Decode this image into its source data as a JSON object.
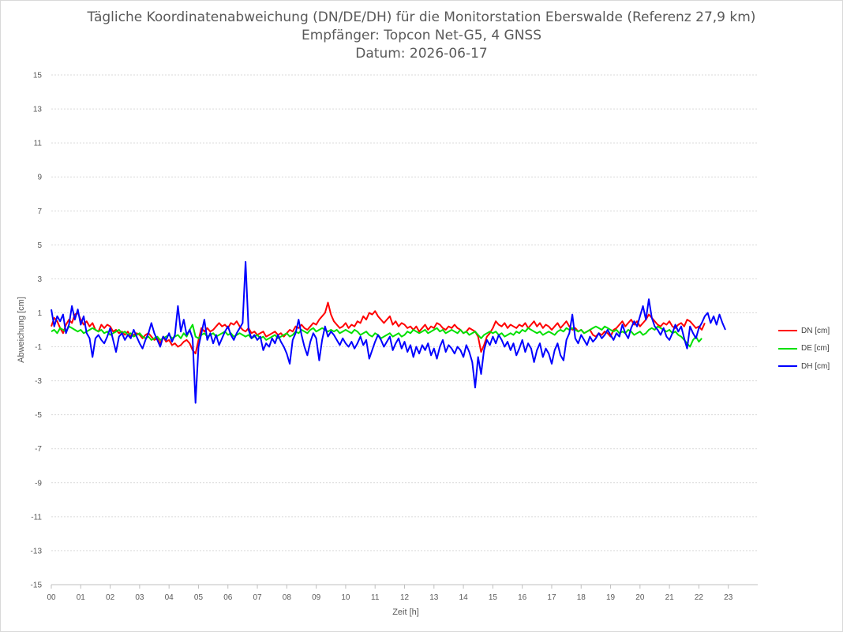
{
  "chart_data": {
    "type": "line",
    "title": "Tägliche Koordinatenabweichung (DN/DE/DH) für die Monitorstation Eberswalde (Referenz 27,9 km)",
    "subtitle": "Empfänger: Topcon Net-G5, 4 GNSS",
    "date_line": "Datum: 2026-06-17",
    "xlabel": "Zeit [h]",
    "ylabel": "Abweichung [cm]",
    "xlim": [
      0,
      24
    ],
    "ylim": [
      -15,
      15
    ],
    "x_ticks": [
      "00",
      "01",
      "02",
      "03",
      "04",
      "05",
      "06",
      "07",
      "08",
      "09",
      "10",
      "11",
      "12",
      "13",
      "14",
      "15",
      "16",
      "17",
      "18",
      "19",
      "20",
      "21",
      "22",
      "23"
    ],
    "y_ticks": [
      15,
      13,
      11,
      9,
      7,
      5,
      3,
      1,
      -1,
      -3,
      -5,
      -7,
      -9,
      -11,
      -13,
      -15
    ],
    "grid": true,
    "legend_position": "right",
    "x_step_hours": 0.1,
    "series": [
      {
        "name": "DN [cm]",
        "color": "#ff0000",
        "values": [
          0.2,
          0.7,
          0.5,
          0.1,
          -0.2,
          0.3,
          0.6,
          0.4,
          0.9,
          1.0,
          0.6,
          0.3,
          0.5,
          0.2,
          0.4,
          0.0,
          -0.1,
          0.3,
          0.1,
          0.3,
          0.2,
          -0.1,
          0.0,
          -0.2,
          -0.1,
          -0.3,
          -0.1,
          -0.4,
          -0.3,
          -0.2,
          -0.3,
          -0.5,
          -0.3,
          -0.2,
          -0.4,
          -0.6,
          -0.5,
          -0.8,
          -0.4,
          -0.7,
          -0.6,
          -0.9,
          -0.8,
          -1.0,
          -0.9,
          -0.7,
          -0.6,
          -0.8,
          -1.2,
          -1.4,
          -0.6,
          0.1,
          -0.1,
          0.1,
          -0.1,
          0.0,
          0.2,
          0.4,
          0.2,
          0.3,
          0.1,
          0.4,
          0.3,
          0.5,
          0.2,
          0.0,
          -0.1,
          0.1,
          -0.2,
          -0.1,
          -0.3,
          -0.2,
          -0.1,
          -0.4,
          -0.3,
          -0.2,
          -0.1,
          -0.3,
          -0.2,
          -0.4,
          -0.2,
          0.0,
          -0.1,
          0.2,
          0.1,
          0.3,
          0.1,
          0.0,
          0.2,
          0.4,
          0.3,
          0.6,
          0.8,
          1.0,
          1.6,
          0.9,
          0.5,
          0.3,
          0.1,
          0.2,
          0.4,
          0.1,
          0.3,
          0.2,
          0.5,
          0.4,
          0.8,
          0.6,
          1.0,
          0.9,
          1.1,
          0.8,
          0.6,
          0.4,
          0.6,
          0.8,
          0.3,
          0.5,
          0.2,
          0.4,
          0.3,
          0.1,
          0.2,
          0.0,
          0.2,
          -0.1,
          0.1,
          0.3,
          0.0,
          0.2,
          0.1,
          0.4,
          0.3,
          0.1,
          0.0,
          0.2,
          0.1,
          0.3,
          0.1,
          0.0,
          -0.2,
          -0.1,
          0.1,
          0.0,
          -0.1,
          -0.4,
          -1.3,
          -0.9,
          -0.4,
          -0.2,
          0.1,
          0.5,
          0.3,
          0.2,
          0.4,
          0.1,
          0.3,
          0.2,
          0.1,
          0.3,
          0.2,
          0.4,
          0.1,
          0.3,
          0.5,
          0.2,
          0.4,
          0.1,
          0.3,
          0.2,
          0.0,
          0.2,
          0.4,
          0.1,
          0.3,
          0.5,
          0.2,
          0.0,
          0.1,
          -0.1,
          0.0,
          -0.2,
          -0.1,
          0.0,
          -0.3,
          -0.4,
          -0.2,
          -0.3,
          -0.1,
          -0.2,
          -0.4,
          0.0,
          0.1,
          0.3,
          0.5,
          0.2,
          0.4,
          0.6,
          0.3,
          0.5,
          0.2,
          0.4,
          0.6,
          0.9,
          0.7,
          0.5,
          0.3,
          0.2,
          0.4,
          0.3,
          0.5,
          0.2,
          0.1,
          0.3,
          0.4,
          0.2,
          0.6,
          0.5,
          0.3,
          0.1,
          0.2,
          0.0,
          0.4
        ]
      },
      {
        "name": "DE [cm]",
        "color": "#00e000",
        "values": [
          -0.1,
          0.0,
          -0.2,
          0.1,
          0.0,
          -0.1,
          0.2,
          0.1,
          0.0,
          -0.1,
          0.0,
          -0.2,
          -0.1,
          0.0,
          0.1,
          0.0,
          -0.1,
          0.0,
          -0.2,
          -0.1,
          -0.3,
          -0.2,
          -0.1,
          0.0,
          -0.2,
          -0.1,
          -0.3,
          -0.2,
          -0.4,
          -0.3,
          -0.2,
          -0.4,
          -0.5,
          -0.4,
          -0.6,
          -0.5,
          -0.4,
          -0.6,
          -0.5,
          -0.4,
          -0.3,
          -0.5,
          -0.4,
          -0.3,
          -0.5,
          -0.2,
          -0.4,
          0.0,
          0.3,
          -0.4,
          -0.5,
          -0.3,
          -0.2,
          -0.4,
          -0.3,
          -0.2,
          -0.4,
          -0.3,
          -0.2,
          -0.1,
          -0.3,
          -0.2,
          -0.4,
          -0.3,
          -0.2,
          -0.3,
          -0.4,
          -0.3,
          -0.5,
          -0.4,
          -0.3,
          -0.5,
          -0.4,
          -0.6,
          -0.5,
          -0.4,
          -0.3,
          -0.5,
          -0.4,
          -0.3,
          -0.2,
          -0.4,
          -0.3,
          -0.1,
          -0.2,
          0.0,
          -0.1,
          -0.2,
          0.0,
          0.1,
          -0.1,
          0.0,
          0.1,
          0.0,
          -0.1,
          0.0,
          -0.1,
          0.0,
          -0.2,
          -0.1,
          0.0,
          -0.1,
          -0.2,
          0.0,
          -0.1,
          -0.3,
          -0.2,
          -0.1,
          -0.3,
          -0.4,
          -0.2,
          -0.3,
          -0.5,
          -0.4,
          -0.3,
          -0.2,
          -0.4,
          -0.3,
          -0.2,
          -0.4,
          -0.3,
          -0.1,
          -0.2,
          0.0,
          -0.1,
          -0.2,
          -0.1,
          0.0,
          -0.2,
          -0.1,
          0.0,
          0.1,
          -0.1,
          0.0,
          -0.2,
          -0.1,
          0.0,
          -0.1,
          -0.2,
          0.0,
          -0.2,
          -0.1,
          -0.3,
          -0.2,
          -0.1,
          -0.3,
          -0.5,
          -0.3,
          -0.2,
          -0.1,
          -0.2,
          -0.1,
          -0.3,
          -0.2,
          -0.4,
          -0.3,
          -0.2,
          -0.3,
          -0.1,
          -0.2,
          0.0,
          -0.1,
          0.1,
          0.0,
          -0.1,
          -0.2,
          -0.1,
          -0.3,
          -0.2,
          -0.1,
          -0.2,
          -0.3,
          -0.1,
          0.0,
          -0.1,
          0.1,
          0.0,
          0.1,
          0.0,
          -0.1,
          0.0,
          -0.2,
          -0.1,
          0.0,
          0.1,
          0.2,
          0.1,
          0.0,
          0.2,
          0.1,
          0.0,
          -0.1,
          0.0,
          -0.2,
          -0.1,
          -0.2,
          0.0,
          -0.1,
          -0.3,
          -0.2,
          -0.1,
          -0.3,
          -0.2,
          0.0,
          0.1,
          0.0,
          0.2,
          0.1,
          0.0,
          -0.1,
          0.0,
          -0.2,
          -0.1,
          -0.3,
          -0.4,
          -0.6,
          -0.8,
          -1.0,
          -0.6,
          -0.4,
          -0.7,
          -0.5
        ]
      },
      {
        "name": "DH [cm]",
        "color": "#0000ff",
        "values": [
          1.2,
          0.2,
          0.8,
          0.5,
          0.9,
          -0.2,
          0.3,
          1.4,
          0.6,
          1.2,
          0.3,
          0.8,
          -0.2,
          -0.5,
          -1.6,
          -0.5,
          -0.3,
          -0.6,
          -0.8,
          -0.4,
          0.1,
          -0.6,
          -1.3,
          -0.4,
          -0.2,
          -0.6,
          -0.3,
          -0.5,
          0.0,
          -0.4,
          -0.8,
          -1.1,
          -0.6,
          -0.2,
          0.4,
          -0.2,
          -0.6,
          -1.0,
          -0.4,
          -0.6,
          -0.2,
          -0.7,
          -0.3,
          1.4,
          -0.1,
          0.6,
          -0.3,
          0.0,
          -0.5,
          -4.3,
          -1.0,
          -0.2,
          0.6,
          -0.6,
          -0.2,
          -0.8,
          -0.3,
          -0.9,
          -0.5,
          -0.1,
          0.2,
          -0.3,
          -0.6,
          -0.2,
          0.1,
          0.4,
          4.0,
          0.0,
          -0.5,
          -0.3,
          -0.6,
          -0.4,
          -1.2,
          -0.8,
          -1.0,
          -0.5,
          -0.8,
          -0.3,
          -0.7,
          -1.0,
          -1.4,
          -2.0,
          -0.6,
          -0.2,
          0.6,
          -0.3,
          -1.0,
          -1.5,
          -0.7,
          -0.2,
          -0.5,
          -1.8,
          -0.6,
          0.2,
          -0.4,
          -0.1,
          -0.3,
          -0.6,
          -0.9,
          -0.5,
          -0.8,
          -1.0,
          -0.7,
          -1.1,
          -0.8,
          -0.4,
          -0.9,
          -0.6,
          -1.7,
          -1.2,
          -0.7,
          -0.3,
          -0.6,
          -1.0,
          -0.7,
          -0.4,
          -1.2,
          -0.8,
          -0.5,
          -1.1,
          -0.7,
          -1.3,
          -0.9,
          -1.6,
          -1.0,
          -1.4,
          -0.9,
          -1.2,
          -0.8,
          -1.5,
          -1.1,
          -1.7,
          -1.0,
          -0.6,
          -1.3,
          -0.9,
          -1.1,
          -1.4,
          -1.0,
          -1.2,
          -1.6,
          -0.9,
          -1.3,
          -1.9,
          -3.4,
          -1.6,
          -2.6,
          -1.2,
          -0.6,
          -0.9,
          -0.4,
          -0.8,
          -0.3,
          -0.6,
          -1.0,
          -0.7,
          -1.2,
          -0.8,
          -1.5,
          -1.1,
          -0.6,
          -1.3,
          -0.8,
          -1.1,
          -1.9,
          -1.2,
          -0.8,
          -1.6,
          -1.1,
          -1.4,
          -2.0,
          -1.2,
          -0.8,
          -1.5,
          -1.8,
          -0.6,
          -0.2,
          0.9,
          -0.5,
          -0.8,
          -0.3,
          -0.6,
          -0.9,
          -0.4,
          -0.7,
          -0.5,
          -0.2,
          -0.5,
          -0.3,
          0.0,
          -0.3,
          -0.6,
          -0.2,
          -0.4,
          0.3,
          -0.2,
          -0.5,
          0.1,
          0.5,
          0.2,
          0.8,
          1.4,
          0.6,
          1.8,
          0.7,
          0.2,
          0.0,
          -0.3,
          0.1,
          -0.4,
          -0.6,
          -0.2,
          0.3,
          -0.1,
          0.2,
          -0.5,
          -1.1,
          0.2,
          -0.2,
          -0.5,
          0.1,
          0.4,
          0.8,
          1.0,
          0.4,
          0.8,
          0.3,
          0.9,
          0.4,
          0.0
        ]
      }
    ]
  }
}
